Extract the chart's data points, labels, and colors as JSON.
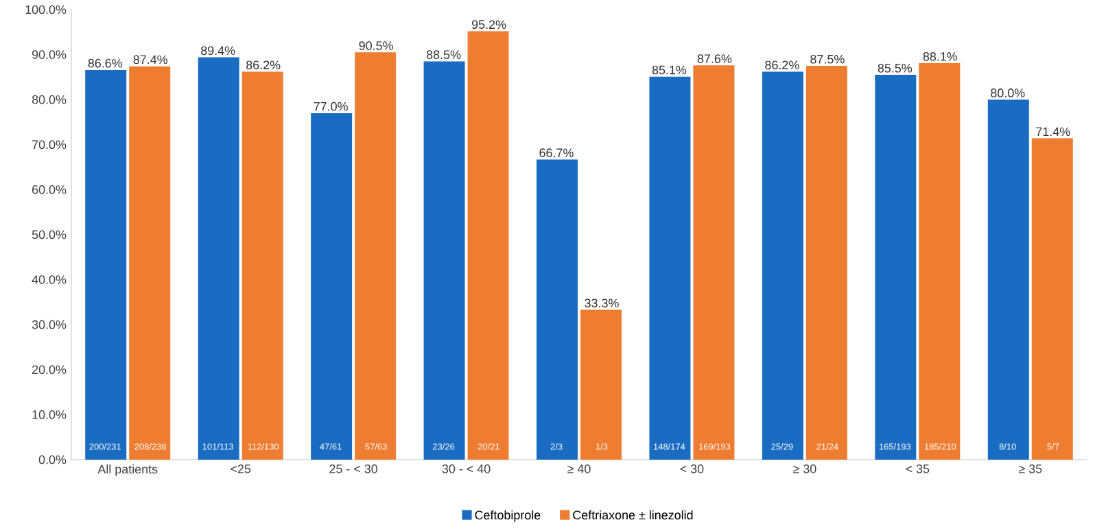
{
  "chart_data": {
    "type": "bar",
    "categories": [
      "All patients",
      "<25",
      "25 - < 30",
      "30 - < 40",
      "≥ 40",
      "< 30",
      "≥ 30",
      "< 35",
      "≥ 35"
    ],
    "series": [
      {
        "name": "Ceftobiprole",
        "color": "#1a6cc2",
        "values": [
          86.6,
          89.4,
          77.0,
          88.5,
          66.7,
          85.1,
          86.2,
          85.5,
          80.0
        ],
        "value_labels": [
          "86.6%",
          "89.4%",
          "77.0%",
          "88.5%",
          "66.7%",
          "85.1%",
          "86.2%",
          "85.5%",
          "80.0%"
        ]
      },
      {
        "name": "Ceftriaxone ± linezolid",
        "color": "#ee7d31",
        "values": [
          87.4,
          86.2,
          90.5,
          95.2,
          33.3,
          87.6,
          87.5,
          88.1,
          71.4
        ],
        "value_labels": [
          "87.4%",
          "86.2%",
          "90.5%",
          "95.2%",
          "33.3%",
          "87.6%",
          "87.5%",
          "88.1%",
          "71.4%"
        ]
      }
    ],
    "annotations": [
      "200/231",
      "208/238",
      "101/113",
      "112/130",
      "47/61",
      "57/63",
      "23/26",
      "20/21",
      "2/3",
      "1/3",
      "148/174",
      "169/193",
      "25/29",
      "21/24",
      "165/193",
      "185/210",
      "8/10",
      "5/7"
    ],
    "ylim": [
      0,
      100
    ],
    "yticks": [
      {
        "value": 0,
        "label": "0.0%"
      },
      {
        "value": 10,
        "label": "10.0%"
      },
      {
        "value": 20,
        "label": "20.0%"
      },
      {
        "value": 30,
        "label": "30.0%"
      },
      {
        "value": 40,
        "label": "40.0%"
      },
      {
        "value": 50,
        "label": "50.0%"
      },
      {
        "value": 60,
        "label": "60.0%"
      },
      {
        "value": 70,
        "label": "70.0%"
      },
      {
        "value": 80,
        "label": "80.0%"
      },
      {
        "value": 90,
        "label": "90.0%"
      },
      {
        "value": 100,
        "label": "100.0%"
      }
    ],
    "legend": "bottom"
  }
}
